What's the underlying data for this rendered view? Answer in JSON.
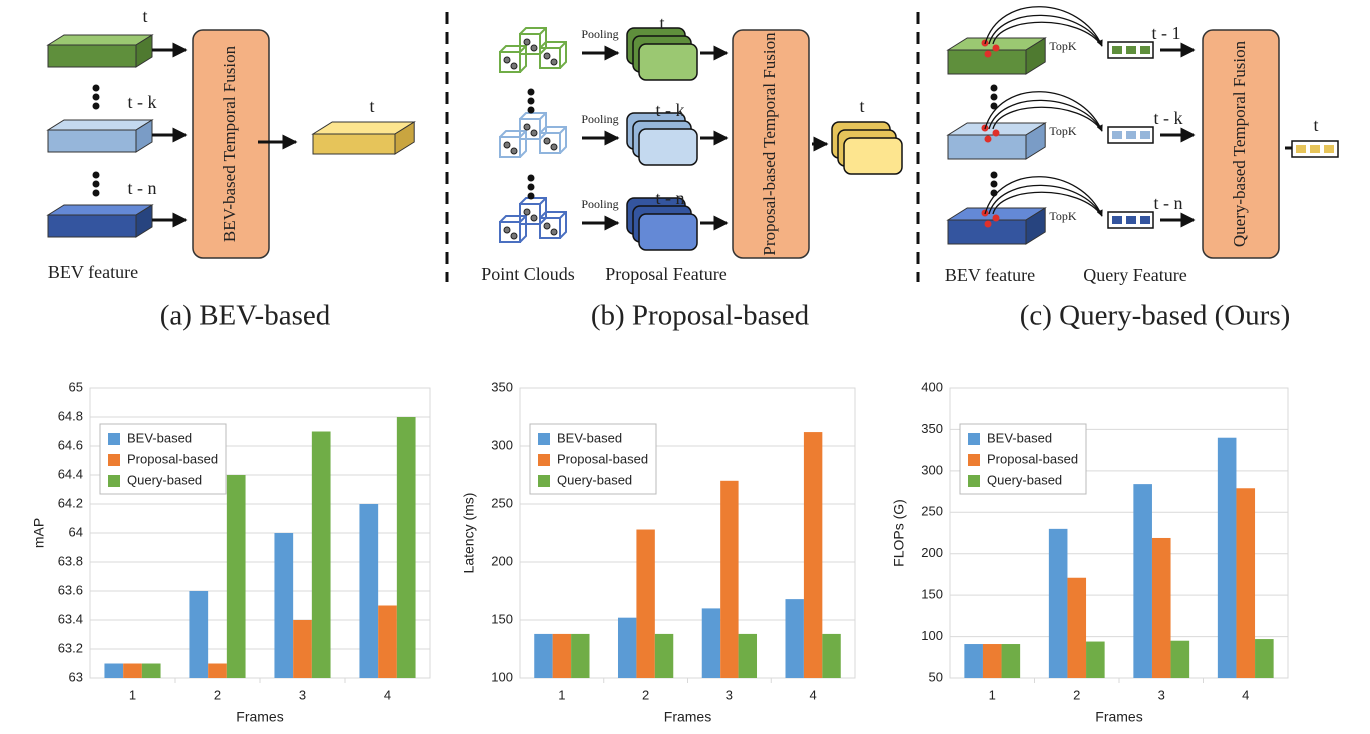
{
  "diagram": {
    "panels": [
      {
        "caption": "(a)  BEV-based",
        "fusion": "BEV-based Temporal Fusion",
        "time_labels": [
          "t",
          "t - k",
          "t - n"
        ],
        "output_label": "t",
        "bottom_labels": [
          "BEV feature"
        ]
      },
      {
        "caption": "(b)  Proposal-based",
        "fusion": "Proposal-based Temporal Fusion",
        "time_labels": [
          "t",
          "t - k",
          "t - n"
        ],
        "output_label": "t",
        "step_labels": [
          "Pooling",
          "Pooling",
          "Pooling"
        ],
        "bottom_labels": [
          "Point Clouds",
          "Proposal Feature"
        ]
      },
      {
        "caption": "(c)  Query-based (Ours)",
        "fusion": "Query-based Temporal Fusion",
        "time_labels": [
          "t - 1",
          "t - k",
          "t - n"
        ],
        "output_label": "t",
        "step_labels": [
          "TopK",
          "TopK",
          "TopK"
        ],
        "bottom_labels": [
          "BEV feature",
          "Query Feature"
        ]
      }
    ]
  },
  "chart_data": [
    {
      "type": "bar",
      "xlabel": "Frames",
      "ylabel": "mAP",
      "categories": [
        "1",
        "2",
        "3",
        "4"
      ],
      "ylim": [
        63,
        65.0
      ],
      "yticks": [
        63,
        63.2,
        63.4,
        63.6,
        63.8,
        64,
        64.2,
        64.4,
        64.6,
        64.8,
        65
      ],
      "grid": true,
      "legend": "upper left",
      "series": [
        {
          "name": "BEV-based",
          "color": "#5b9bd5",
          "values": [
            63.1,
            63.6,
            64.0,
            64.2
          ]
        },
        {
          "name": "Proposal-based",
          "color": "#ed7d31",
          "values": [
            63.1,
            63.1,
            63.4,
            63.5
          ]
        },
        {
          "name": "Query-based",
          "color": "#70ad47",
          "values": [
            63.1,
            64.4,
            64.7,
            64.8
          ]
        }
      ]
    },
    {
      "type": "bar",
      "xlabel": "Frames",
      "ylabel": "Latency (ms)",
      "categories": [
        "1",
        "2",
        "3",
        "4"
      ],
      "ylim": [
        100,
        350
      ],
      "yticks": [
        100,
        150,
        200,
        250,
        300,
        350
      ],
      "grid": true,
      "legend": "upper left",
      "series": [
        {
          "name": "BEV-based",
          "color": "#5b9bd5",
          "values": [
            138,
            152,
            160,
            168
          ]
        },
        {
          "name": "Proposal-based",
          "color": "#ed7d31",
          "values": [
            138,
            228,
            270,
            312
          ]
        },
        {
          "name": "Query-based",
          "color": "#70ad47",
          "values": [
            138,
            138,
            138,
            138
          ]
        }
      ]
    },
    {
      "type": "bar",
      "xlabel": "Frames",
      "ylabel": "FLOPs (G)",
      "categories": [
        "1",
        "2",
        "3",
        "4"
      ],
      "ylim": [
        50,
        400
      ],
      "yticks": [
        50,
        100,
        150,
        200,
        250,
        300,
        350,
        400
      ],
      "grid": true,
      "legend": "upper left",
      "series": [
        {
          "name": "BEV-based",
          "color": "#5b9bd5",
          "values": [
            91,
            230,
            284,
            340
          ]
        },
        {
          "name": "Proposal-based",
          "color": "#ed7d31",
          "values": [
            91,
            171,
            219,
            279
          ]
        },
        {
          "name": "Query-based",
          "color": "#70ad47",
          "values": [
            91,
            94,
            95,
            97
          ]
        }
      ]
    }
  ]
}
